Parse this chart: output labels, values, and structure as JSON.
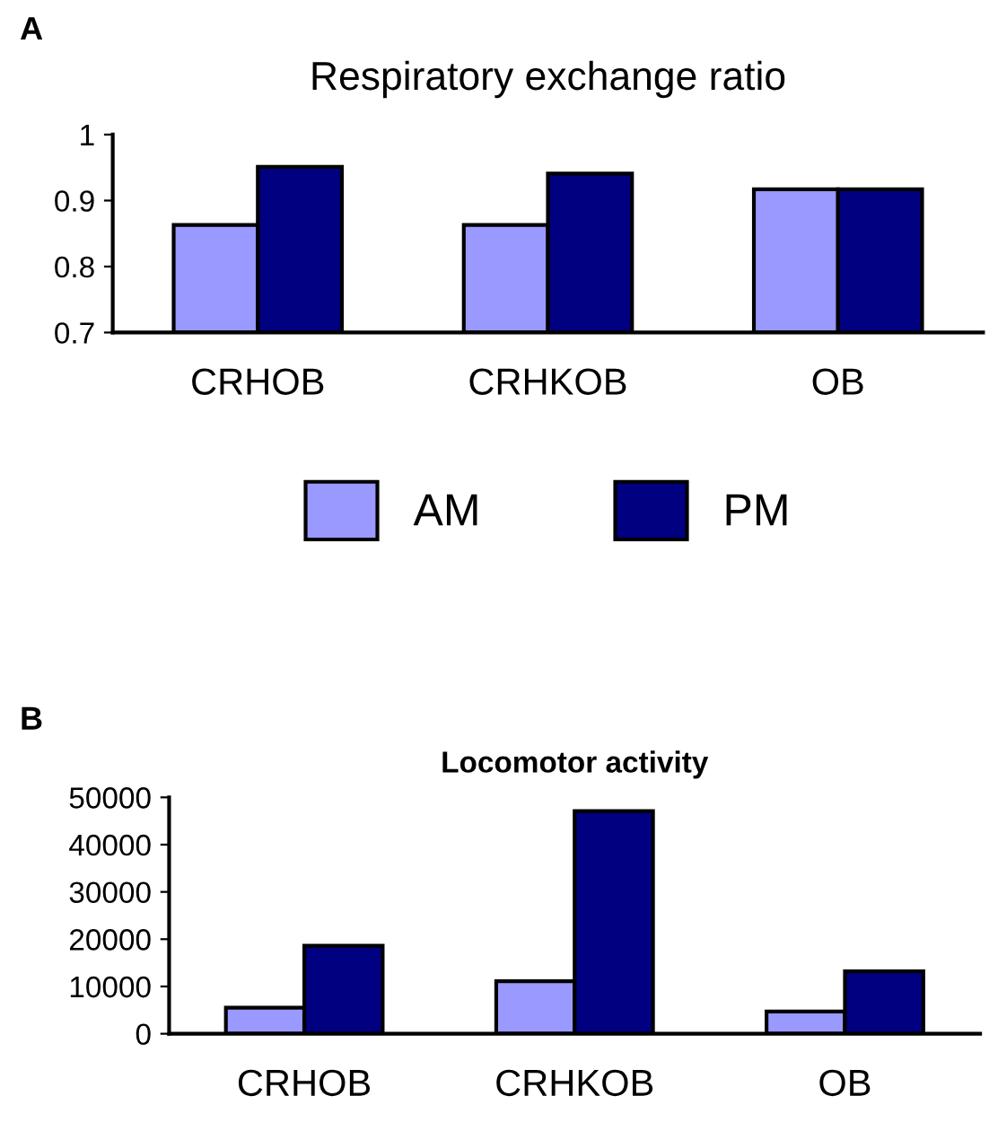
{
  "chart_data": [
    {
      "type": "bar",
      "title": "Respiratory exchange ratio",
      "annotations": [
        "A"
      ],
      "categories": [
        "CRHOB",
        "CRHKOB",
        "OB"
      ],
      "series": [
        {
          "name": "AM",
          "color": "#9999ff",
          "values": [
            0.863,
            0.863,
            0.917
          ]
        },
        {
          "name": "PM",
          "color": "#000080",
          "values": [
            0.951,
            0.941,
            0.917
          ]
        }
      ],
      "ylim": [
        0.7,
        1
      ],
      "yticks": [
        {
          "value": 0.7,
          "label": "0.7"
        },
        {
          "value": 0.8,
          "label": "0.8"
        },
        {
          "value": 0.9,
          "label": "0.9"
        },
        1
      ],
      "grid": false,
      "legend": "bottom"
    },
    {
      "type": "bar",
      "title": "Locomotor activity",
      "annotations": [
        "B"
      ],
      "categories": [
        "CRHOB",
        "CRHKOB",
        "OB"
      ],
      "series": [
        {
          "color": "#9999ff",
          "values": [
            5500,
            11100,
            4700
          ]
        },
        {
          "color": "#000080",
          "values": [
            18600,
            47100,
            13200
          ]
        }
      ],
      "ylim": [
        0,
        50000
      ],
      "yticks": [
        0,
        10000,
        20000,
        30000,
        40000,
        50000
      ],
      "grid": false
    }
  ]
}
